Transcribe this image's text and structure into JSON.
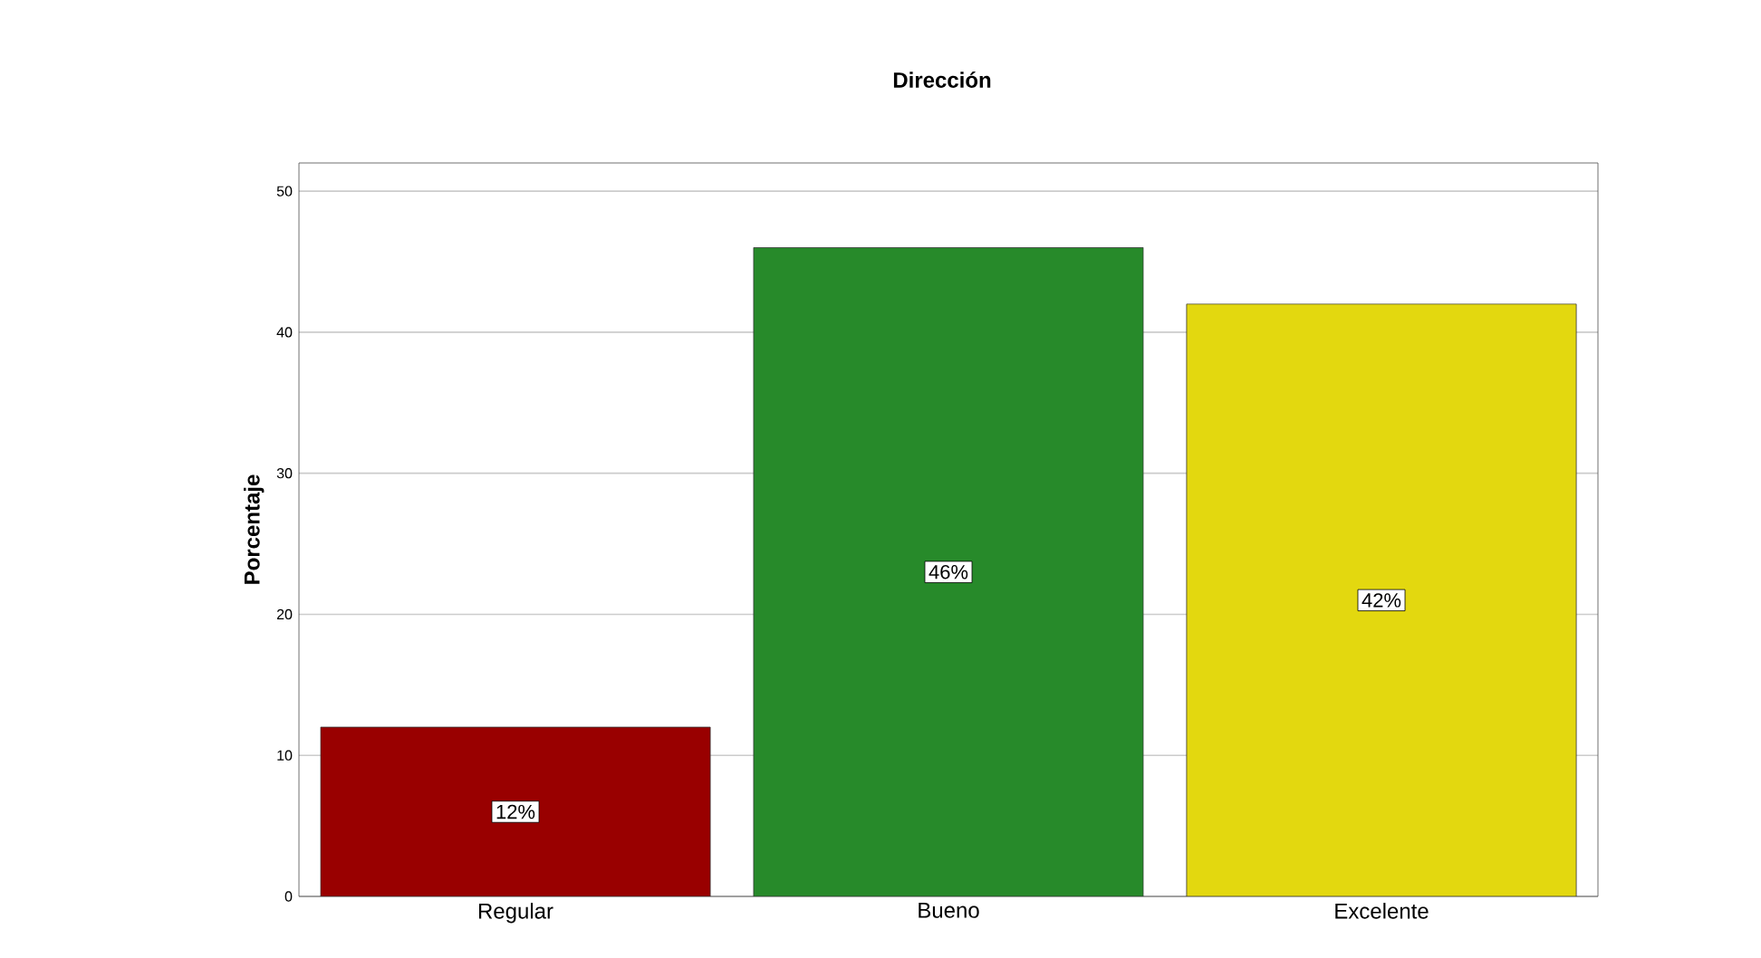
{
  "chart_data": {
    "type": "bar",
    "title": "Dirección",
    "ylabel": "Porcentaje",
    "categories": [
      "Regular",
      "Bueno",
      "Excelente"
    ],
    "values": [
      12,
      46,
      42
    ],
    "colors": [
      "#990000",
      "#278a2a",
      "#e3d80f"
    ],
    "value_labels": [
      "12%",
      "46%",
      "42%"
    ],
    "ylim": [
      0,
      52
    ],
    "yticks": [
      0,
      10,
      20,
      30,
      40,
      50
    ],
    "grid": "y"
  }
}
